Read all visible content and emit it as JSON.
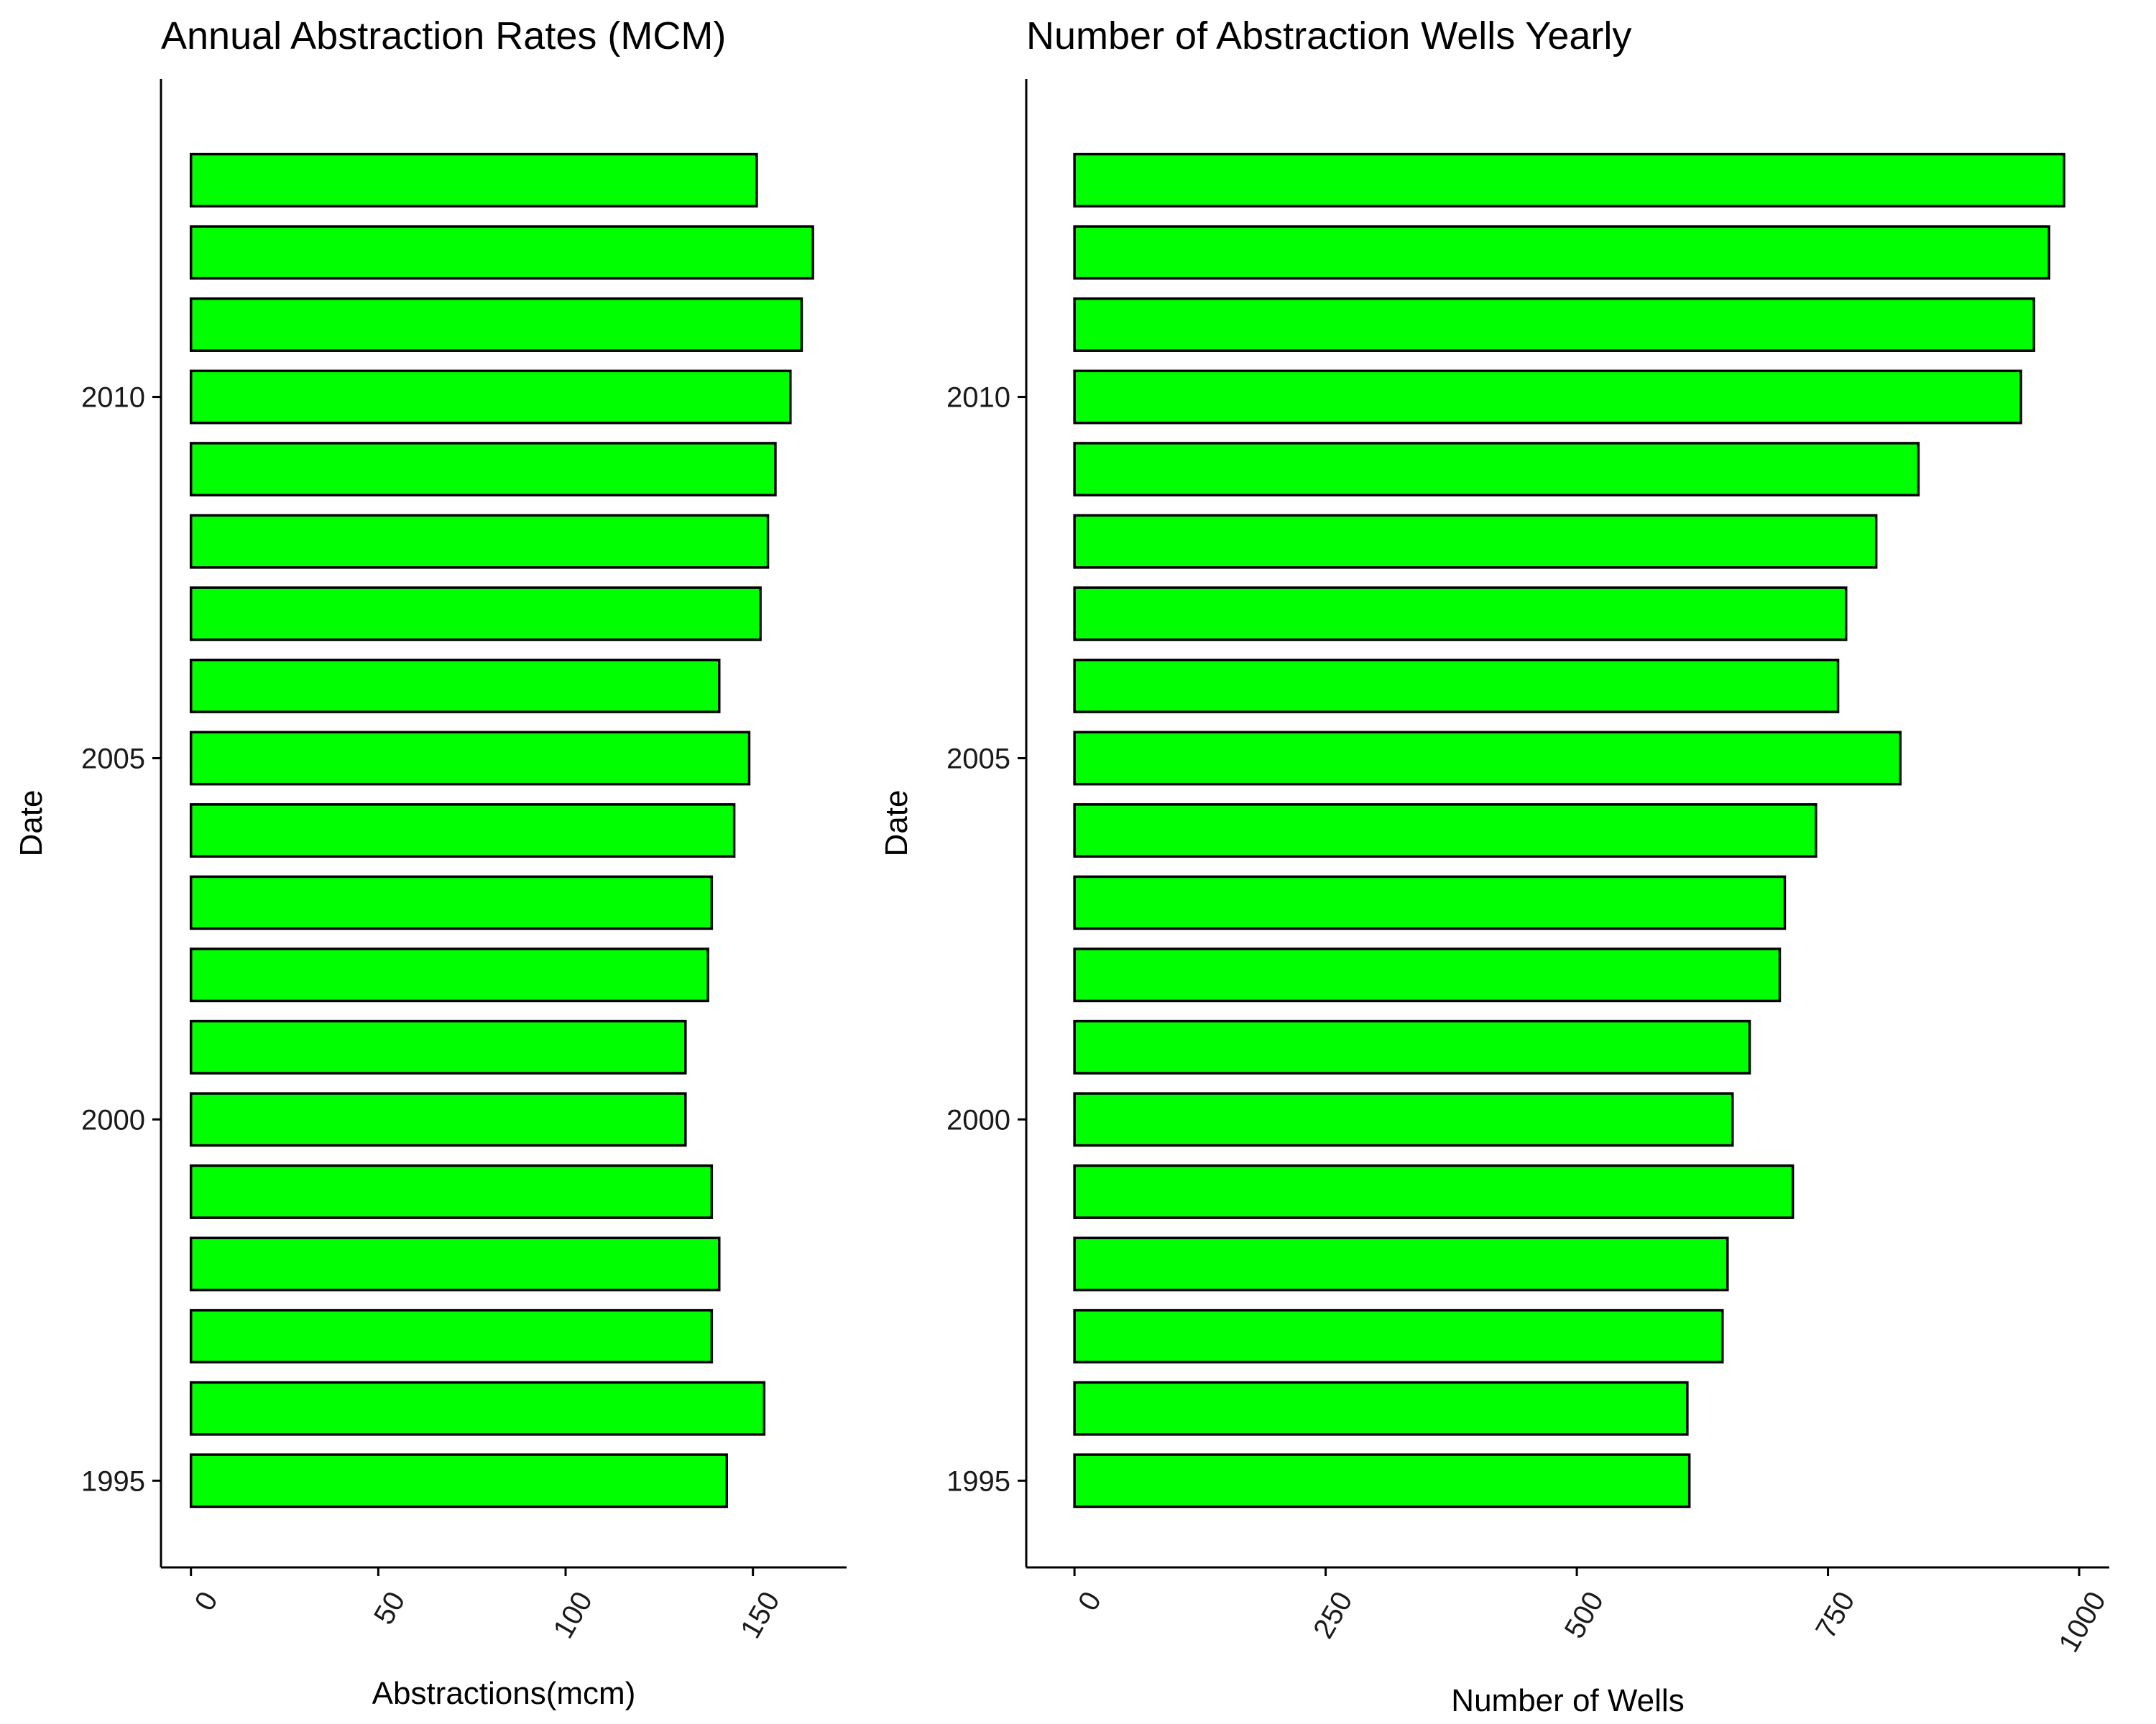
{
  "colors": {
    "bar_fill": "#00ff00",
    "bar_outline": "#000000",
    "background": "#ffffff"
  },
  "chart_data": [
    {
      "type": "bar",
      "orientation": "horizontal",
      "title": "Annual Abstraction Rates (MCM)",
      "xlabel": "Abstractions(mcm)",
      "ylabel": "Date",
      "xlim": [
        -8,
        175
      ],
      "ylim": [
        1993.8,
        2014.4
      ],
      "x_ticks": [
        0,
        50,
        100,
        150
      ],
      "y_ticks": [
        1995,
        2000,
        2005,
        2010
      ],
      "grid": false,
      "legend": "none",
      "categories": [
        1995,
        1996,
        1997,
        1998,
        1999,
        2000,
        2001,
        2002,
        2003,
        2004,
        2005,
        2006,
        2007,
        2008,
        2009,
        2010,
        2011,
        2012,
        2013
      ],
      "values": [
        143,
        153,
        139,
        141,
        139,
        132,
        132,
        138,
        139,
        145,
        149,
        141,
        152,
        154,
        156,
        160,
        163,
        166,
        151
      ]
    },
    {
      "type": "bar",
      "orientation": "horizontal",
      "title": "Number of Abstraction Wells Yearly",
      "xlabel": "Number of Wells",
      "ylabel": "Date",
      "xlim": [
        -48,
        1030
      ],
      "ylim": [
        1993.8,
        2014.4
      ],
      "x_ticks": [
        0,
        250,
        500,
        750,
        1000
      ],
      "y_ticks": [
        1995,
        2000,
        2005,
        2010
      ],
      "grid": false,
      "legend": "none",
      "categories": [
        1995,
        1996,
        1997,
        1998,
        1999,
        2000,
        2001,
        2002,
        2003,
        2004,
        2005,
        2006,
        2007,
        2008,
        2009,
        2010,
        2011,
        2012,
        2013
      ],
      "values": [
        612,
        610,
        645,
        650,
        715,
        655,
        672,
        702,
        707,
        738,
        822,
        760,
        768,
        798,
        840,
        942,
        955,
        970,
        985
      ]
    }
  ]
}
